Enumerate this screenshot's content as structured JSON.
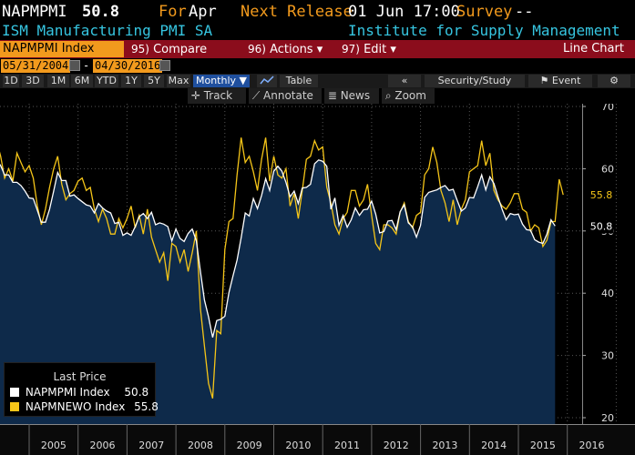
{
  "header": {
    "ticker": "NAPMPMI",
    "last": "50.8",
    "for_label": "For",
    "for_value": "Apr",
    "next_label": "Next Release",
    "next_value": "01 Jun 17:00",
    "survey_label": "Survey",
    "survey_value": "--",
    "subtitle": "ISM Manufacturing PMI SA",
    "source": "Institute for Supply Management"
  },
  "toolbar": {
    "ticker_field": "NAPMPMI Index",
    "compare_num": "95)",
    "compare": "Compare",
    "actions_num": "96)",
    "actions": "Actions",
    "edit_num": "97)",
    "edit": "Edit",
    "chart_type": "Line Chart"
  },
  "dates": {
    "start": "05/31/2004",
    "sep": "-",
    "end": "04/30/2016"
  },
  "ranges": [
    "1D",
    "3D",
    "1M",
    "6M",
    "YTD",
    "1Y",
    "5Y",
    "Max"
  ],
  "period": "Monthly",
  "table_label": "Table",
  "security_study": "Security/Study",
  "event": "Event",
  "tools": {
    "track": "Track",
    "annotate": "Annotate",
    "news": "News",
    "zoom": "Zoom"
  },
  "legend": {
    "title": "Last Price",
    "items": [
      {
        "name": "NAPMPMI Index",
        "value": "50.8",
        "color": "#ffffff"
      },
      {
        "name": "NAPMNEWO Index",
        "value": "55.8",
        "color": "#f5c518"
      }
    ]
  },
  "colors": {
    "orange": "#f29a1d",
    "area": "#0e2a4a",
    "newo": "#f5c518"
  },
  "chart_data": {
    "type": "line",
    "x_start": "2004-05",
    "x_end": "2016-04",
    "x_ticks": [
      "2005",
      "2006",
      "2007",
      "2008",
      "2009",
      "2010",
      "2011",
      "2012",
      "2013",
      "2014",
      "2015",
      "2016"
    ],
    "ylim": [
      20,
      70
    ],
    "y_ticks": [
      20,
      30,
      40,
      50,
      60,
      70
    ],
    "series": [
      {
        "name": "NAPMPMI Index",
        "last": 50.8,
        "values": [
          61.4,
          60.5,
          59.0,
          59.0,
          57.8,
          57.8,
          57.3,
          56.4,
          55.3,
          55.2,
          53.3,
          51.4,
          51.4,
          53.5,
          56.4,
          59.4,
          58.1,
          58.1,
          55.6,
          55.8,
          55.2,
          54.7,
          54.2,
          54.0,
          52.9,
          54.4,
          53.7,
          53.2,
          52.9,
          51.2,
          51.4,
          49.3,
          49.7,
          49.3,
          50.7,
          52.3,
          52.8,
          52.0,
          53.0,
          51.0,
          51.3,
          51.1,
          50.7,
          48.4,
          50.3,
          48.8,
          48.3,
          49.6,
          50.3,
          48.4,
          43.5,
          38.9,
          36.2,
          32.9,
          35.6,
          35.8,
          36.3,
          40.1,
          42.8,
          45.3,
          48.9,
          52.9,
          52.4,
          55.2,
          53.6,
          55.7,
          58.4,
          56.5,
          59.6,
          60.4,
          59.6,
          57.8,
          55.5,
          56.4,
          54.4,
          56.9,
          57.0,
          57.5,
          60.8,
          61.4,
          61.2,
          60.4,
          53.5,
          55.3,
          50.9,
          52.5,
          50.6,
          51.8,
          53.7,
          52.5,
          53.4,
          53.5,
          54.8,
          52.7,
          49.7,
          49.9,
          51.6,
          51.7,
          50.2,
          53.1,
          54.2,
          51.3,
          50.7,
          49.0,
          50.9,
          55.4,
          56.2,
          56.4,
          56.6,
          57.0,
          57.3,
          56.5,
          56.7,
          54.9,
          53.2,
          53.7,
          55.4,
          55.3,
          57.1,
          59.0,
          56.6,
          58.7,
          57.6,
          55.5,
          53.5,
          51.8,
          52.8,
          52.6,
          52.7,
          51.1,
          50.2,
          50.1,
          48.6,
          48.2,
          48.0,
          49.5,
          51.8,
          50.8
        ]
      },
      {
        "name": "NAPMNEWO Index",
        "last": 55.8,
        "values": [
          64.5,
          62.0,
          58.5,
          60.0,
          58.0,
          62.5,
          61.0,
          59.5,
          60.5,
          58.5,
          54.0,
          51.0,
          53.5,
          57.0,
          60.0,
          62.0,
          57.5,
          55.0,
          56.0,
          56.5,
          58.0,
          58.5,
          56.5,
          57.0,
          53.5,
          51.5,
          53.5,
          52.0,
          49.5,
          49.5,
          52.0,
          50.5,
          52.0,
          54.0,
          50.5,
          52.5,
          49.5,
          53.5,
          49.0,
          47.0,
          45.0,
          46.5,
          42.0,
          48.0,
          47.5,
          45.0,
          47.0,
          43.5,
          46.5,
          50.0,
          37.5,
          31.5,
          25.5,
          23.1,
          34.0,
          33.5,
          47.0,
          51.5,
          52.0,
          59.0,
          65.0,
          61.0,
          62.0,
          59.5,
          56.5,
          61.5,
          65.0,
          58.0,
          62.0,
          59.0,
          58.5,
          60.0,
          54.0,
          56.0,
          52.0,
          56.5,
          61.5,
          62.0,
          64.5,
          63.0,
          63.5,
          57.0,
          54.5,
          51.0,
          49.5,
          52.0,
          53.0,
          56.5,
          56.5,
          54.0,
          55.0,
          57.5,
          52.5,
          48.0,
          47.0,
          51.0,
          51.0,
          50.5,
          49.5,
          53.0,
          54.5,
          51.5,
          50.5,
          52.5,
          53.0,
          59.0,
          60.0,
          63.5,
          61.0,
          56.5,
          54.5,
          51.5,
          55.0,
          51.0,
          53.5,
          55.0,
          59.5,
          60.0,
          60.5,
          64.5,
          60.5,
          62.5,
          56.5,
          55.0,
          54.0,
          53.5,
          54.5,
          56.0,
          56.0,
          53.5,
          53.0,
          50.0,
          51.0,
          50.5,
          47.5,
          48.5,
          51.5,
          51.5,
          58.3,
          55.8
        ]
      }
    ]
  }
}
